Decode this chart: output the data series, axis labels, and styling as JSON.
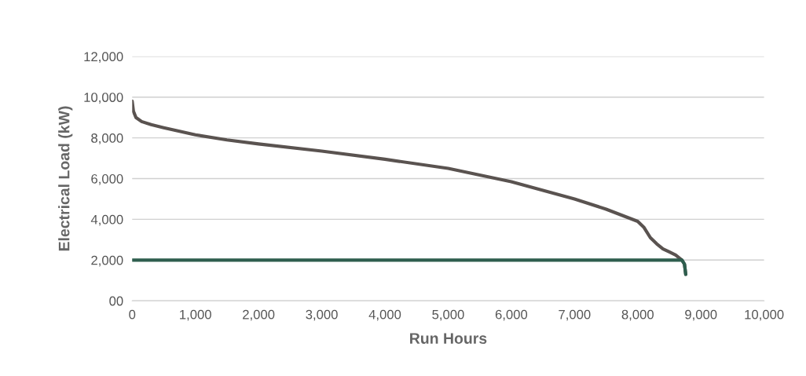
{
  "chart_data": {
    "type": "line",
    "xlabel": "Run Hours",
    "ylabel": "Electrical Load (kW)",
    "series": [
      {
        "color": "#5a5350",
        "x": [
          0,
          20,
          60,
          150,
          300,
          500,
          1000,
          1500,
          2000,
          3000,
          4000,
          5000,
          6000,
          7000,
          7500,
          8000,
          8100,
          8200,
          8300,
          8400,
          8500,
          8600,
          8700,
          8740,
          8760
        ],
        "values": [
          9800,
          9300,
          9000,
          8800,
          8650,
          8500,
          8150,
          7900,
          7700,
          7350,
          6950,
          6500,
          5850,
          5000,
          4500,
          3900,
          3600,
          3100,
          2800,
          2550,
          2400,
          2250,
          2000,
          1800,
          1300
        ]
      },
      {
        "color": "#2e5e4e",
        "x": [
          0,
          8700,
          8740,
          8760
        ],
        "values": [
          2000,
          2000,
          1800,
          1300
        ]
      }
    ],
    "xlim": [
      0,
      10000
    ],
    "xticks": [
      0,
      {
        "value": 1000,
        "label": "1,000"
      },
      {
        "value": 2000,
        "label": "2,000"
      },
      {
        "value": 3000,
        "label": "3,000"
      },
      {
        "value": 4000,
        "label": "4,000"
      },
      {
        "value": 5000,
        "label": "5,000"
      },
      {
        "value": 6000,
        "label": "6,000"
      },
      {
        "value": 7000,
        "label": "7,000"
      },
      {
        "value": 8000,
        "label": "8,000"
      },
      {
        "value": 9000,
        "label": "9,000"
      },
      {
        "value": 10000,
        "label": "10,000"
      }
    ],
    "ylim": [
      0,
      12000
    ],
    "yticks": [
      {
        "value": 0,
        "label": "00"
      },
      {
        "value": 2000,
        "label": "2,000"
      },
      {
        "value": 4000,
        "label": "4,000"
      },
      {
        "value": 6000,
        "label": "6,000"
      },
      {
        "value": 8000,
        "label": "8,000"
      },
      {
        "value": 10000,
        "label": "10,000"
      },
      {
        "value": 12000,
        "label": "12,000"
      }
    ],
    "grid": "y",
    "legend": false
  }
}
